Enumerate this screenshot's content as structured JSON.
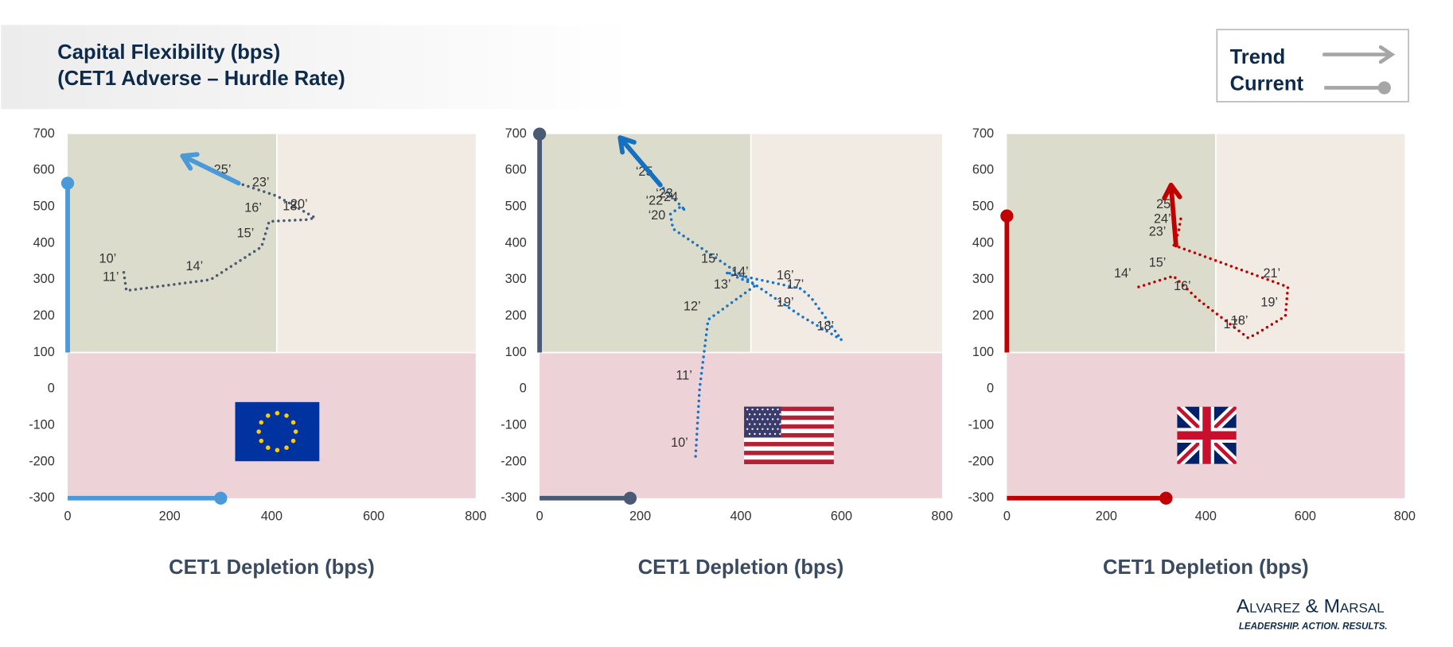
{
  "header": {
    "title_lines": [
      "Capital Flexibility (bps)",
      "(CET1 Adverse – Hurdle Rate)"
    ]
  },
  "legend": {
    "trend": "Trend",
    "current": "Current"
  },
  "logo": {
    "name": "Alvarez & Marsal",
    "tagline": "LEADERSHIP. ACTION. RESULTS."
  },
  "chart_data": [
    {
      "type": "line",
      "xlabel": "CET1 Depletion (bps)",
      "xlim": [
        0,
        800
      ],
      "ylim": [
        -300,
        700
      ],
      "xticks": [
        0,
        200,
        400,
        600,
        800
      ],
      "yticks": [
        -300,
        -200,
        -100,
        0,
        100,
        200,
        300,
        400,
        500,
        600,
        700
      ],
      "zones": {
        "x": 410,
        "y": 100
      },
      "path": {
        "color": "#4a5a70",
        "x": [
          110,
          115,
          280,
          380,
          395,
          470,
          485,
          410,
          335
        ],
        "values": [
          320,
          270,
          300,
          390,
          460,
          465,
          470,
          530,
          565
        ],
        "labels": [
          "10’",
          "11’",
          "14’",
          "15’",
          "16’",
          "18’",
          "20’",
          "23’",
          "25’"
        ]
      },
      "trend": {
        "color": "#4a9ad9",
        "x": [
          335,
          225
        ],
        "values": [
          565,
          640
        ]
      },
      "current": {
        "color": "#4a9ad9",
        "x": 300,
        "y": 565
      }
    },
    {
      "type": "line",
      "xlabel": "CET1 Depletion (bps)",
      "xlim": [
        0,
        800
      ],
      "ylim": [
        -300,
        700
      ],
      "xticks": [
        0,
        200,
        400,
        600,
        800
      ],
      "yticks": [
        -300,
        -200,
        -100,
        0,
        100,
        200,
        300,
        400,
        500,
        600,
        700
      ],
      "zones": {
        "x": 420,
        "y": 100
      },
      "path": {
        "color": "#1a73c4",
        "x": [
          310,
          318,
          335,
          395,
          430,
          370,
          520,
          540,
          600,
          520,
          265,
          260,
          280,
          290,
          240
        ],
        "values": [
          -185,
          0,
          190,
          250,
          285,
          320,
          275,
          250,
          135,
          200,
          440,
          480,
          500,
          490,
          560
        ],
        "labels": [
          "10’",
          "11’",
          "12’",
          "13’",
          "14’",
          "15’",
          "16’",
          "17’",
          "18’",
          "19’",
          "‘20",
          "‘22",
          "‘23",
          "‘24",
          "‘25"
        ]
      },
      "trend": {
        "color": "#1570bf",
        "x": [
          240,
          160
        ],
        "values": [
          560,
          690
        ]
      },
      "current": {
        "color": "#4a5a75",
        "x": 180,
        "y": 700
      }
    },
    {
      "type": "line",
      "xlabel": "CET1 Depletion (bps)",
      "xlim": [
        0,
        800
      ],
      "ylim": [
        -300,
        700
      ],
      "xticks": [
        0,
        200,
        400,
        600,
        800
      ],
      "yticks": [
        -300,
        -200,
        -100,
        0,
        100,
        200,
        300,
        400,
        500,
        600,
        700
      ],
      "zones": {
        "x": 420,
        "y": 100
      },
      "path": {
        "color": "#c00000",
        "x": [
          265,
          335,
          385,
          485,
          500,
          560,
          565,
          335,
          345,
          350
        ],
        "values": [
          280,
          310,
          245,
          140,
          150,
          200,
          280,
          395,
          430,
          470
        ],
        "labels": [
          "14’",
          "15’",
          "16’",
          "17’",
          "18’",
          "19’",
          "21’",
          "23’",
          "24’",
          "25’"
        ]
      },
      "trend": {
        "color": "#c00000",
        "x": [
          340,
          330
        ],
        "values": [
          395,
          560
        ]
      },
      "current": {
        "color": "#c00000",
        "x": 320,
        "y": 475
      }
    }
  ]
}
